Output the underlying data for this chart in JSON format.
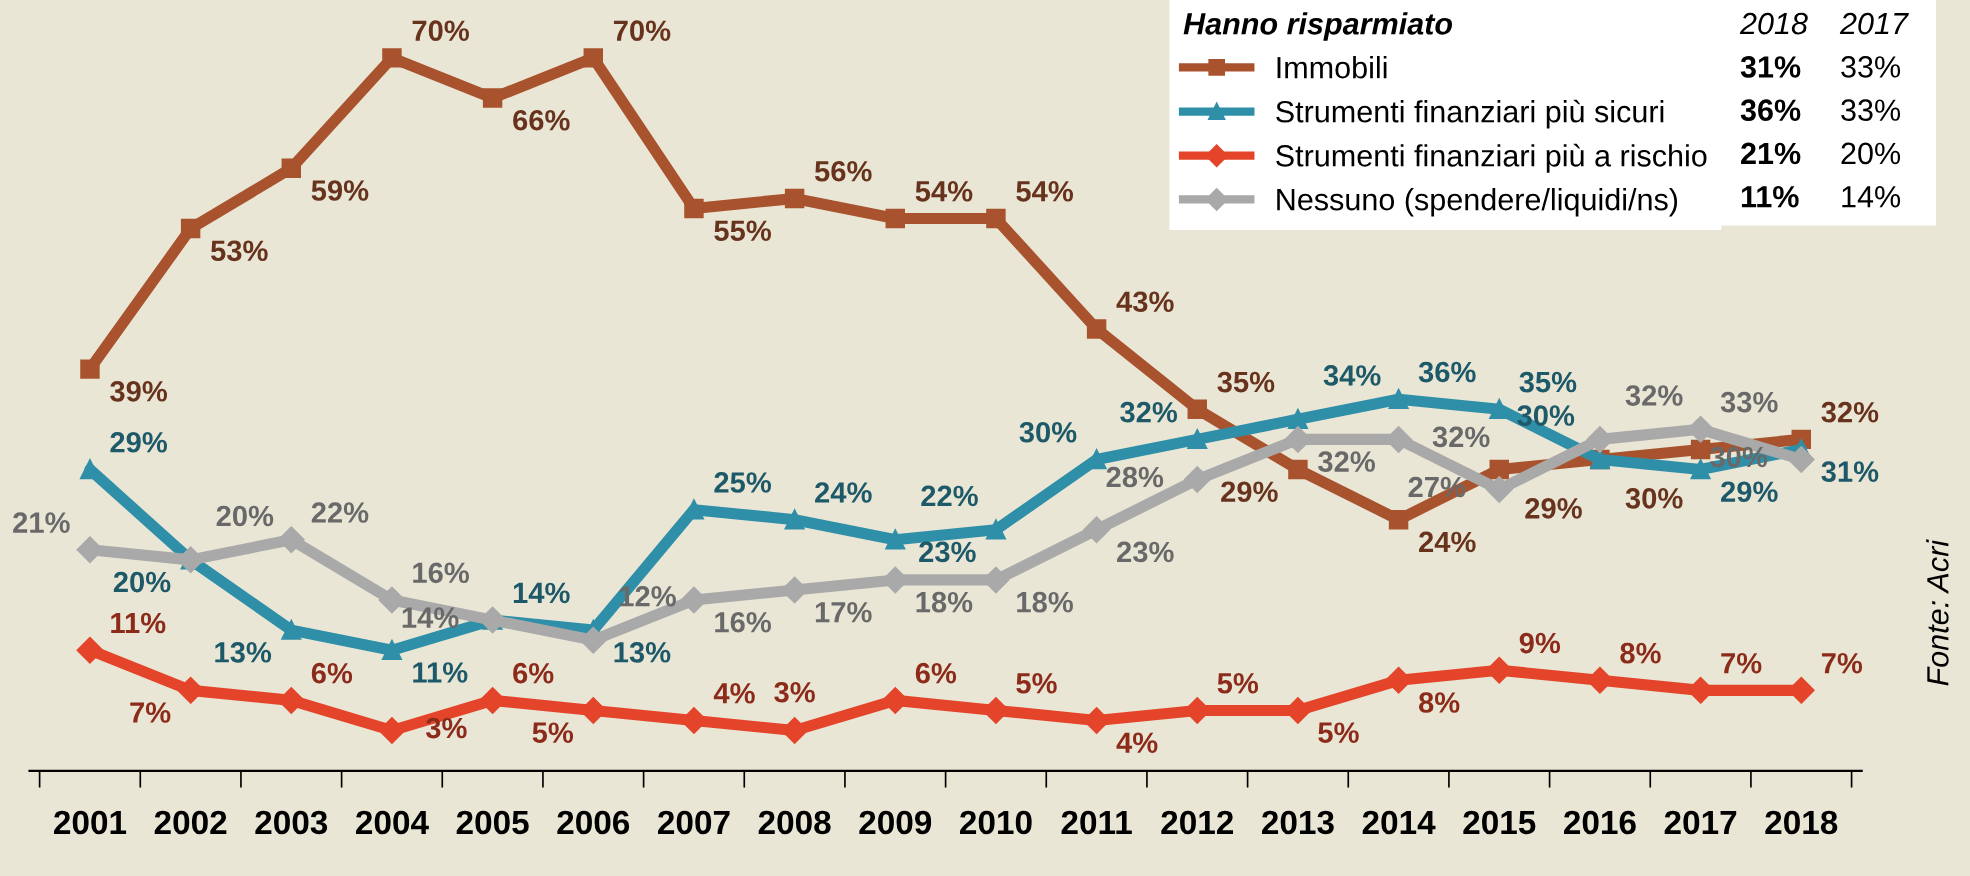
{
  "chart_data": {
    "type": "line",
    "categories": [
      "2001",
      "2002",
      "2003",
      "2004",
      "2005",
      "2006",
      "2007",
      "2008",
      "2009",
      "2010",
      "2011",
      "2012",
      "2013",
      "2014",
      "2015",
      "2016",
      "2017",
      "2018"
    ],
    "legend": "top right",
    "legend_title": "Hanno risparmiato",
    "grid": false,
    "line_style": "solid",
    "series": [
      {
        "name": "Immobili",
        "color": "#a8532e",
        "marker": "square",
        "values": [
          39,
          53,
          59,
          70,
          66,
          70,
          55,
          56,
          54,
          54,
          43,
          35,
          29,
          24,
          29,
          30,
          31,
          32
        ],
        "value_labels": [
          "39%",
          "53%",
          "59%",
          "70%",
          "66%",
          "70%",
          "55%",
          "56%",
          "54%",
          "54%",
          "43%",
          "35%",
          "29%",
          "24%",
          "29%",
          "30%",
          null,
          "32%"
        ]
      },
      {
        "name": "Strumenti finanziari più sicuri",
        "color": "#2f8fa8",
        "marker": "triangle",
        "values": [
          29,
          20,
          13,
          11,
          14,
          13,
          25,
          24,
          22,
          23,
          30,
          32,
          34,
          36,
          35,
          30,
          29,
          31
        ],
        "value_labels": [
          "29%",
          "20%",
          "13%",
          "11%",
          "14%",
          "13%",
          "25%",
          "24%",
          "22%",
          "23%",
          "30%",
          "32%",
          "34%",
          "36%",
          "35%",
          "30%",
          "29%",
          "31%"
        ]
      },
      {
        "name": "Strumenti finanziari più a rischio",
        "color": "#e4452a",
        "marker": "diamond",
        "values": [
          11,
          7,
          6,
          3,
          6,
          5,
          4,
          3,
          6,
          5,
          4,
          5,
          5,
          8,
          9,
          8,
          7,
          7
        ],
        "value_labels": [
          "11%",
          "7%",
          "6%",
          "3%",
          "6%",
          "5%",
          "4%",
          "3%",
          "6%",
          "5%",
          "4%",
          "5%",
          "5%",
          "8%",
          "9%",
          "8%",
          "7%",
          "7%"
        ]
      },
      {
        "name": "Nessuno (spendere/liquidi/ns)",
        "color": "#a9a9a9",
        "marker": "diamond",
        "values": [
          21,
          20,
          22,
          16,
          14,
          12,
          16,
          17,
          18,
          18,
          23,
          28,
          32,
          32,
          27,
          32,
          33,
          30
        ],
        "value_labels": [
          "21%",
          "20%",
          "22%",
          "16%",
          "14%",
          "12%",
          "16%",
          "17%",
          "18%",
          "18%",
          "23%",
          "28%",
          "32%",
          "32%",
          "27%",
          "32%",
          "33%",
          "30%"
        ]
      }
    ],
    "annotations": [
      "2018",
      "2017",
      "31%",
      "33%",
      "36%",
      "33%",
      "21%",
      "20%",
      "11%",
      "14%",
      "Fonte: Acri"
    ]
  }
}
